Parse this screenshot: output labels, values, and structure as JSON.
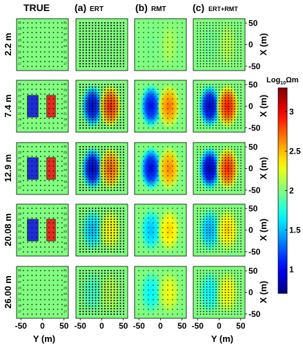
{
  "figure": {
    "columns": [
      {
        "id": "true",
        "letter": "",
        "label": "TRUE"
      },
      {
        "id": "ert",
        "letter": "(a)",
        "label": "ERT"
      },
      {
        "id": "rmt",
        "letter": "(b)",
        "label": "RMT"
      },
      {
        "id": "ert_rmt",
        "letter": "(c)",
        "label": "ERT+RMT"
      }
    ],
    "depth_labels": [
      "2.2 m",
      "7.4 m",
      "12.9 m",
      "20.08 m",
      "26.00 m"
    ],
    "electrode_numbers": [
      "31",
      "29",
      "27",
      "25",
      "23",
      "21",
      "19",
      "17"
    ],
    "colors": {
      "background": "#66dd66",
      "conductive_block": "#1f2dd9",
      "resistive_block": "#e8281e",
      "sensor_dot": "#111111"
    }
  },
  "chart_data": {
    "type": "heatmap",
    "xlabel": "Y (m)",
    "ylabel": "X (m)",
    "x_ticks": [
      -50,
      0,
      50
    ],
    "y_ticks": [
      50,
      0,
      -50
    ],
    "colorbar": {
      "label": "Log10Ωm",
      "ticks": [
        1,
        1.5,
        2,
        2.5,
        3
      ],
      "range": [
        0.7,
        3.3
      ]
    },
    "background_value": 2.0,
    "true_model": {
      "blocks_present_rows": [
        1,
        2,
        3
      ],
      "conductive_block": {
        "y": [
          -35,
          -10
        ],
        "x": [
          -25,
          25
        ],
        "log_resistivity": 1.0
      },
      "resistive_block": {
        "y": [
          10,
          30
        ],
        "x": [
          -25,
          25
        ],
        "log_resistivity": 3.0
      }
    },
    "inversions": {
      "ert": [
        {
          "depth": "2.2 m",
          "low": 2.0,
          "high": 2.0
        },
        {
          "depth": "7.4 m",
          "low": 0.9,
          "high": 2.9
        },
        {
          "depth": "12.9 m",
          "low": 0.85,
          "high": 2.75
        },
        {
          "depth": "20.08 m",
          "low": 1.5,
          "high": 2.35
        },
        {
          "depth": "26.00 m",
          "low": 1.8,
          "high": 2.15
        }
      ],
      "rmt": [
        {
          "depth": "2.2 m",
          "low": 1.97,
          "high": 2.12
        },
        {
          "depth": "7.4 m",
          "low": 0.95,
          "high": 2.7
        },
        {
          "depth": "12.9 m",
          "low": 0.9,
          "high": 2.65
        },
        {
          "depth": "20.08 m",
          "low": 1.5,
          "high": 2.45
        },
        {
          "depth": "26.00 m",
          "low": 1.65,
          "high": 2.3
        }
      ],
      "ert_rmt": [
        {
          "depth": "2.2 m",
          "low": 1.95,
          "high": 2.15
        },
        {
          "depth": "7.4 m",
          "low": 0.85,
          "high": 2.95
        },
        {
          "depth": "12.9 m",
          "low": 0.8,
          "high": 2.9
        },
        {
          "depth": "20.08 m",
          "low": 1.45,
          "high": 2.45
        },
        {
          "depth": "26.00 m",
          "low": 1.65,
          "high": 2.35
        }
      ]
    }
  }
}
